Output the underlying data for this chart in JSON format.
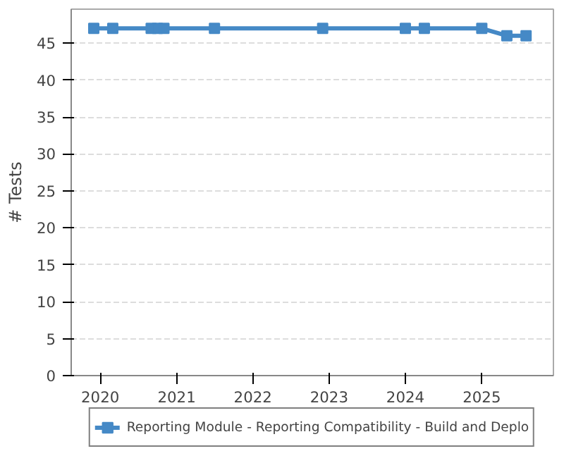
{
  "chart_data": {
    "type": "line",
    "ylabel": "# Tests",
    "x": [
      "2019-12",
      "2020-03",
      "2020-09",
      "2020-10",
      "2020-11",
      "2021-07",
      "2022-12",
      "2024-01",
      "2024-04",
      "2025-01",
      "2025-05",
      "2025-08"
    ],
    "series": [
      {
        "name": "Reporting Module - Reporting Compatibility - Build and Deplo",
        "color": "#4589c6",
        "values": [
          47,
          47,
          47,
          47,
          47,
          47,
          47,
          47,
          47,
          47,
          46,
          46
        ]
      }
    ],
    "xlim": [
      "2019-08-15",
      "2025-12-10"
    ],
    "xticks": [
      "2020",
      "2021",
      "2022",
      "2023",
      "2024",
      "2025"
    ],
    "ylim": [
      0,
      49.6
    ],
    "yticks": [
      0,
      5,
      10,
      15,
      20,
      25,
      30,
      35,
      40,
      45
    ],
    "grid": "y",
    "legend": "bottom",
    "marker": "square",
    "line_style": "solid"
  }
}
